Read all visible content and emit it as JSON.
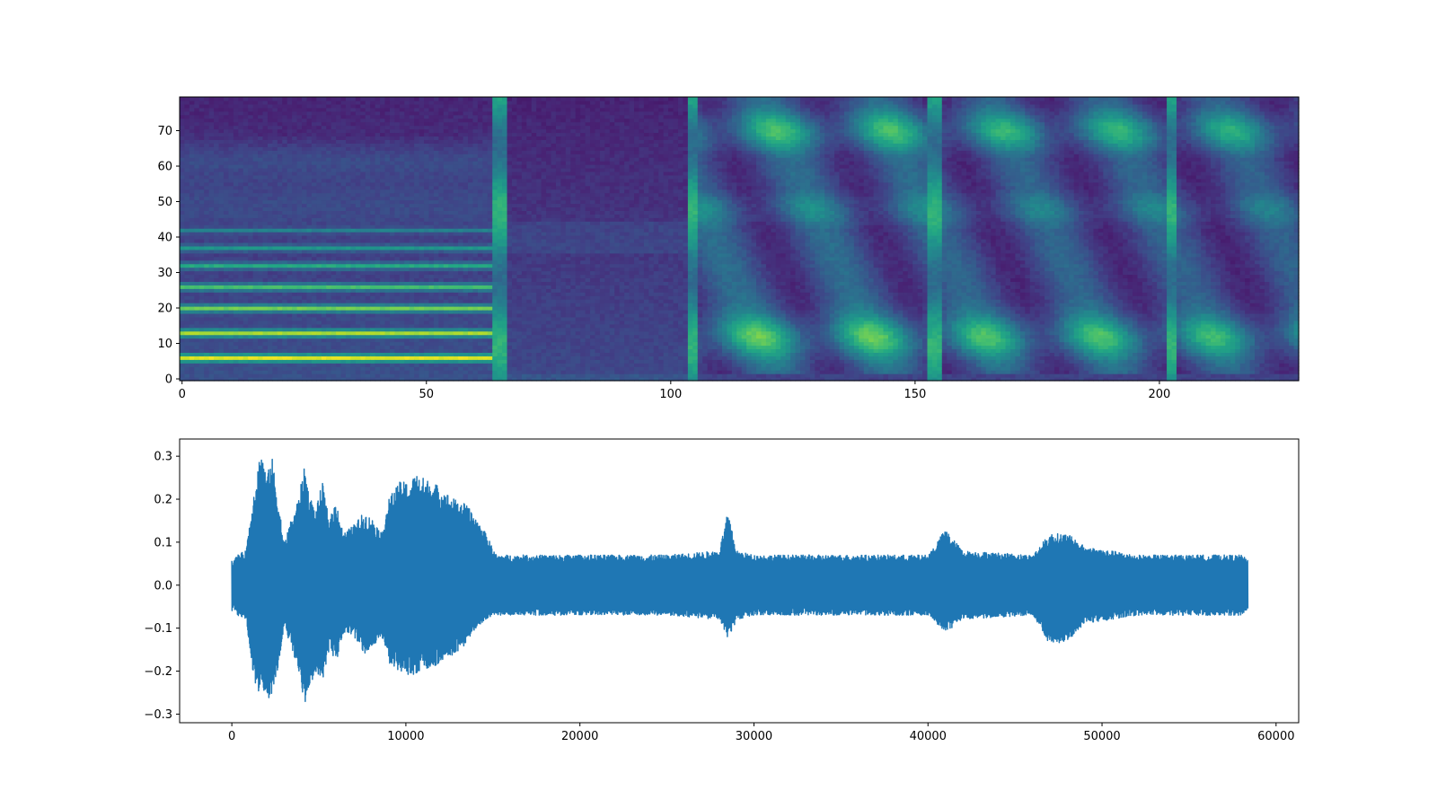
{
  "chart_data": [
    {
      "type": "heatmap",
      "title": "",
      "xlabel": "",
      "ylabel": "",
      "colormap": "viridis",
      "xlim": [
        -0.5,
        228.5
      ],
      "ylim": [
        -0.5,
        79.5
      ],
      "n_frames": 229,
      "n_mels": 80,
      "x_ticks": [
        0,
        50,
        100,
        150,
        200
      ],
      "y_ticks": [
        0,
        10,
        20,
        30,
        40,
        50,
        60,
        70
      ],
      "x_tick_labels": [
        "0",
        "50",
        "100",
        "150",
        "200"
      ],
      "y_tick_labels": [
        "0",
        "10",
        "20",
        "30",
        "40",
        "50",
        "60",
        "70"
      ],
      "segments": [
        {
          "start": 0,
          "end": 64,
          "kind": "harmonic-voiced",
          "level": 0.55
        },
        {
          "start": 64,
          "end": 67,
          "kind": "burst",
          "level": 0.6
        },
        {
          "start": 67,
          "end": 104,
          "kind": "silence",
          "level": 0.12
        },
        {
          "start": 104,
          "end": 106,
          "kind": "burst",
          "level": 0.55
        },
        {
          "start": 106,
          "end": 153,
          "kind": "fricative",
          "level": 0.45
        },
        {
          "start": 153,
          "end": 156,
          "kind": "burst",
          "level": 0.55
        },
        {
          "start": 156,
          "end": 202,
          "kind": "fricative",
          "level": 0.42
        },
        {
          "start": 202,
          "end": 204,
          "kind": "burst",
          "level": 0.5
        },
        {
          "start": 204,
          "end": 229,
          "kind": "fricative",
          "level": 0.4
        }
      ],
      "harmonic_bands": [
        6,
        13,
        20,
        26,
        32,
        37,
        42
      ]
    },
    {
      "type": "line",
      "title": "",
      "xlabel": "",
      "ylabel": "",
      "color": "#1f77b4",
      "xlim": [
        -3000,
        61300
      ],
      "ylim": [
        -0.32,
        0.34
      ],
      "x_ticks": [
        0,
        10000,
        20000,
        30000,
        40000,
        50000,
        60000
      ],
      "y_ticks": [
        -0.3,
        -0.2,
        -0.1,
        0.0,
        0.1,
        0.2,
        0.3
      ],
      "x_tick_labels": [
        "0",
        "10000",
        "20000",
        "30000",
        "40000",
        "50000",
        "60000"
      ],
      "y_tick_labels": [
        "−0.3",
        "−0.2",
        "−0.1",
        "0.0",
        "0.1",
        "0.2",
        "0.3"
      ],
      "n_samples": 58368,
      "envelope": {
        "x": [
          0,
          300,
          800,
          1200,
          1500,
          1700,
          2000,
          2300,
          2600,
          3000,
          3400,
          3800,
          4200,
          4400,
          4800,
          5200,
          5600,
          6000,
          6400,
          7000,
          7600,
          8200,
          8600,
          9000,
          9600,
          10200,
          10600,
          11000,
          11600,
          12200,
          12800,
          13400,
          14000,
          14600,
          15200,
          16000,
          20000,
          25000,
          28000,
          28500,
          29000,
          30000,
          35000,
          40000,
          41000,
          42000,
          46000,
          47000,
          48000,
          49000,
          52000,
          55000,
          58000,
          58368
        ],
        "upper": [
          0.05,
          0.07,
          0.08,
          0.2,
          0.28,
          0.32,
          0.25,
          0.3,
          0.22,
          0.1,
          0.15,
          0.2,
          0.28,
          0.22,
          0.17,
          0.24,
          0.15,
          0.2,
          0.12,
          0.14,
          0.17,
          0.15,
          0.12,
          0.2,
          0.24,
          0.24,
          0.26,
          0.25,
          0.24,
          0.22,
          0.2,
          0.19,
          0.16,
          0.12,
          0.07,
          0.07,
          0.07,
          0.07,
          0.08,
          0.17,
          0.08,
          0.07,
          0.07,
          0.07,
          0.13,
          0.08,
          0.07,
          0.12,
          0.12,
          0.09,
          0.07,
          0.07,
          0.07,
          0.06
        ],
        "lower": [
          -0.05,
          -0.07,
          -0.08,
          -0.2,
          -0.26,
          -0.22,
          -0.28,
          -0.25,
          -0.2,
          -0.1,
          -0.14,
          -0.2,
          -0.28,
          -0.25,
          -0.2,
          -0.22,
          -0.15,
          -0.18,
          -0.11,
          -0.12,
          -0.16,
          -0.14,
          -0.12,
          -0.18,
          -0.2,
          -0.21,
          -0.21,
          -0.2,
          -0.19,
          -0.17,
          -0.16,
          -0.14,
          -0.1,
          -0.08,
          -0.07,
          -0.07,
          -0.07,
          -0.07,
          -0.08,
          -0.13,
          -0.08,
          -0.07,
          -0.07,
          -0.07,
          -0.11,
          -0.08,
          -0.07,
          -0.14,
          -0.13,
          -0.09,
          -0.07,
          -0.07,
          -0.07,
          -0.06
        ]
      }
    }
  ]
}
